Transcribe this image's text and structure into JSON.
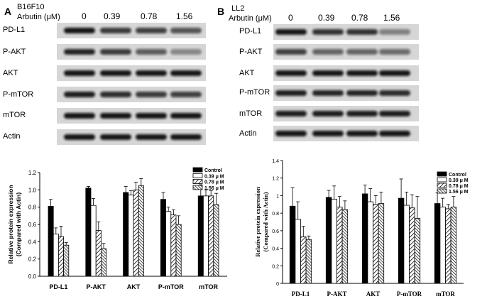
{
  "panels": [
    {
      "letter": "A",
      "cell_line": "B16F10",
      "treatment_label": "Arbutin (μM)",
      "concentrations": [
        "0",
        "0.39",
        "0.78",
        "1.56"
      ],
      "blot_rows": [
        "PD-L1",
        "P-AKT",
        "AKT",
        "P-mTOR",
        "mTOR",
        "Actin"
      ]
    },
    {
      "letter": "B",
      "cell_line": "LL2",
      "treatment_label": "Arbutin (μM)",
      "concentrations": [
        "0",
        "0.39",
        "0.78",
        "1.56"
      ],
      "blot_rows": [
        "PD-L1",
        "P-AKT",
        "AKT",
        "P-mTOR",
        "mTOR",
        "Actin"
      ]
    }
  ],
  "chart_data": [
    {
      "type": "bar",
      "title": "",
      "xlabel": "",
      "ylabel": "Relative protein expression\n(Compared with Actin)",
      "ylim": [
        0,
        1.2
      ],
      "yticks": [
        "0.0",
        "0.2",
        "0.4",
        "0.6",
        "0.8",
        "1.0",
        "1.2"
      ],
      "categories": [
        "PD-L1",
        "P-AKT",
        "AKT",
        "P-mTOR",
        "mTOR"
      ],
      "series": [
        {
          "name": "Control",
          "pattern": "solid",
          "values": [
            0.81,
            1.02,
            0.97,
            0.89,
            0.93
          ],
          "errors": [
            0.08,
            0.02,
            0.07,
            0.08,
            0.13
          ]
        },
        {
          "name": "0.39 μ M",
          "pattern": "open",
          "values": [
            0.49,
            0.82,
            0.94,
            0.75,
            0.93
          ],
          "errors": [
            0.07,
            0.08,
            0.05,
            0.05,
            0.07
          ]
        },
        {
          "name": "0.78 μ M",
          "pattern": "hatched",
          "values": [
            0.46,
            0.53,
            1.0,
            0.71,
            0.93
          ],
          "errors": [
            0.12,
            0.1,
            0.09,
            0.06,
            0.06
          ]
        },
        {
          "name": "1.56 μ M",
          "pattern": "dense",
          "values": [
            0.36,
            0.32,
            1.05,
            0.6,
            0.83
          ],
          "errors": [
            0.03,
            0.06,
            0.08,
            0.1,
            0.13
          ]
        }
      ]
    },
    {
      "type": "bar",
      "title": "",
      "xlabel": "",
      "ylabel": "Relative protein expression\n(Compared with Actin)",
      "ylim": [
        0,
        1.4
      ],
      "yticks": [
        "0",
        "0.2",
        "0.4",
        "0.6",
        "0.8",
        "1",
        "1.2",
        "1.4"
      ],
      "categories": [
        "PD-L1",
        "P-AKT",
        "AKT",
        "P-mTOR",
        "mTOR"
      ],
      "series": [
        {
          "name": "Control",
          "pattern": "solid",
          "values": [
            0.88,
            0.98,
            1.02,
            0.97,
            0.91
          ],
          "errors": [
            0.21,
            0.08,
            0.1,
            0.22,
            0.12
          ]
        },
        {
          "name": "0.39 μ M",
          "pattern": "open",
          "values": [
            0.73,
            0.96,
            0.93,
            0.89,
            0.87
          ],
          "errors": [
            0.2,
            0.15,
            0.15,
            0.15,
            0.1
          ]
        },
        {
          "name": "0.78 μ M",
          "pattern": "hatched",
          "values": [
            0.53,
            0.87,
            0.9,
            0.86,
            0.85
          ],
          "errors": [
            0.12,
            0.12,
            0.1,
            0.15,
            0.05
          ]
        },
        {
          "name": "1.56 μ M",
          "pattern": "dense",
          "values": [
            0.5,
            0.84,
            0.91,
            0.74,
            0.87
          ],
          "errors": [
            0.04,
            0.1,
            0.13,
            0.25,
            0.12
          ]
        }
      ]
    }
  ]
}
